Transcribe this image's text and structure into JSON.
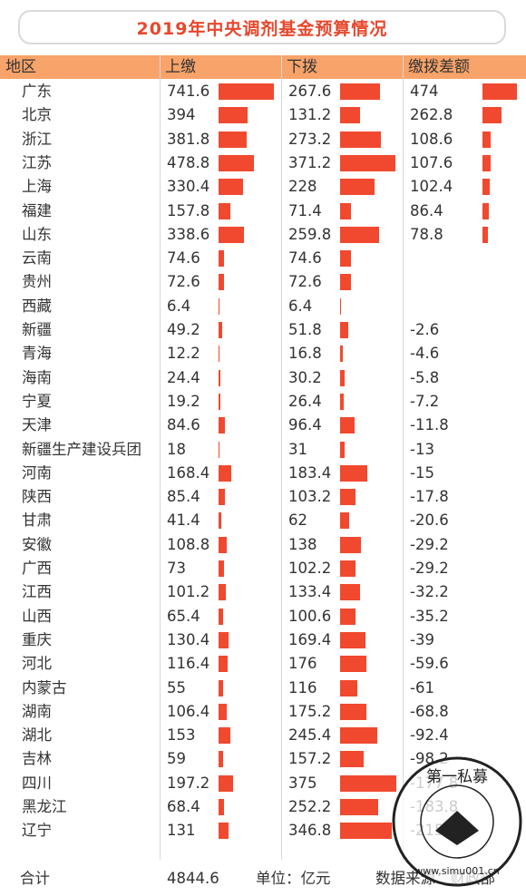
{
  "chart_data": {
    "type": "table",
    "title": "2019年中央调剂基金预算情况",
    "columns": [
      "地区",
      "上缴",
      "下拨",
      "缴拨差额"
    ],
    "rows": [
      {
        "region": "广东",
        "up": 741.6,
        "down": 267.6,
        "diff": 474
      },
      {
        "region": "北京",
        "up": 394,
        "down": 131.2,
        "diff": 262.8
      },
      {
        "region": "浙江",
        "up": 381.8,
        "down": 273.2,
        "diff": 108.6
      },
      {
        "region": "江苏",
        "up": 478.8,
        "down": 371.2,
        "diff": 107.6
      },
      {
        "region": "上海",
        "up": 330.4,
        "down": 228,
        "diff": 102.4
      },
      {
        "region": "福建",
        "up": 157.8,
        "down": 71.4,
        "diff": 86.4
      },
      {
        "region": "山东",
        "up": 338.6,
        "down": 259.8,
        "diff": 78.8
      },
      {
        "region": "云南",
        "up": 74.6,
        "down": 74.6,
        "diff": null
      },
      {
        "region": "贵州",
        "up": 72.6,
        "down": 72.6,
        "diff": null
      },
      {
        "region": "西藏",
        "up": 6.4,
        "down": 6.4,
        "diff": null
      },
      {
        "region": "新疆",
        "up": 49.2,
        "down": 51.8,
        "diff": -2.6
      },
      {
        "region": "青海",
        "up": 12.2,
        "down": 16.8,
        "diff": -4.6
      },
      {
        "region": "海南",
        "up": 24.4,
        "down": 30.2,
        "diff": -5.8
      },
      {
        "region": "宁夏",
        "up": 19.2,
        "down": 26.4,
        "diff": -7.2
      },
      {
        "region": "天津",
        "up": 84.6,
        "down": 96.4,
        "diff": -11.8
      },
      {
        "region": "新疆生产建设兵团",
        "up": 18,
        "down": 31,
        "diff": -13
      },
      {
        "region": "河南",
        "up": 168.4,
        "down": 183.4,
        "diff": -15
      },
      {
        "region": "陕西",
        "up": 85.4,
        "down": 103.2,
        "diff": -17.8
      },
      {
        "region": "甘肃",
        "up": 41.4,
        "down": 62,
        "diff": -20.6
      },
      {
        "region": "安徽",
        "up": 108.8,
        "down": 138,
        "diff": -29.2
      },
      {
        "region": "广西",
        "up": 73,
        "down": 102.2,
        "diff": -29.2
      },
      {
        "region": "江西",
        "up": 101.2,
        "down": 133.4,
        "diff": -32.2
      },
      {
        "region": "山西",
        "up": 65.4,
        "down": 100.6,
        "diff": -35.2
      },
      {
        "region": "重庆",
        "up": 130.4,
        "down": 169.4,
        "diff": -39
      },
      {
        "region": "河北",
        "up": 116.4,
        "down": 176,
        "diff": -59.6
      },
      {
        "region": "内蒙古",
        "up": 55,
        "down": 116,
        "diff": -61
      },
      {
        "region": "湖南",
        "up": 106.4,
        "down": 175.2,
        "diff": -68.8
      },
      {
        "region": "湖北",
        "up": 153,
        "down": 245.4,
        "diff": -92.4
      },
      {
        "region": "吉林",
        "up": 59,
        "down": 157.2,
        "diff": -98.2
      },
      {
        "region": "四川",
        "up": 197.2,
        "down": 375,
        "diff": -177.8
      },
      {
        "region": "黑龙江",
        "up": 68.4,
        "down": 252.2,
        "diff": -183.8
      },
      {
        "region": "辽宁",
        "up": 131,
        "down": 346.8,
        "diff": -215.8
      }
    ],
    "bar_color": "#f1492f",
    "header_color": "#f8a36a",
    "title_color": "#e8472c"
  },
  "footer": {
    "total_label": "合计",
    "total_value": "4844.6",
    "unit": "单位：亿元",
    "source": "数据来源：财政部"
  },
  "watermark": {
    "text_top": "第一私募",
    "text_bottom": "www.simu001.cn"
  }
}
